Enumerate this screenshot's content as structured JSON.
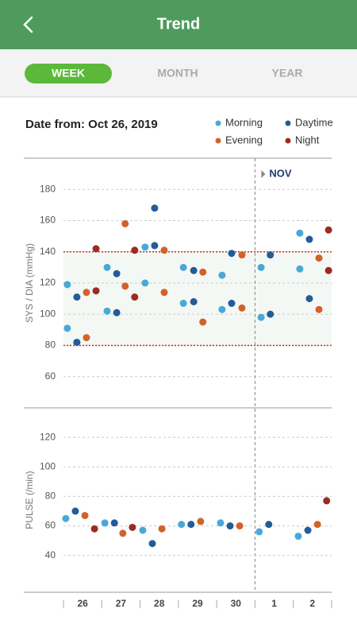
{
  "header": {
    "title": "Trend"
  },
  "tabs": [
    "WEEK",
    "MONTH",
    "YEAR"
  ],
  "active_tab": 0,
  "date_from": "Date from: Oct 26, 2019",
  "chart_data": [
    {
      "type": "scatter",
      "ylabel": "SYS / DIA  (mmHg)",
      "xlim": [
        0,
        7
      ],
      "ylim": [
        40,
        200
      ],
      "yticks": [
        60,
        80,
        100,
        120,
        140,
        160,
        180
      ],
      "grid": true,
      "target_range": [
        80,
        140
      ],
      "month_marker": {
        "label": "NOV",
        "x": 5
      },
      "series": [
        {
          "name": "Morning",
          "color": "#4aa8d8",
          "x": [
            0.1,
            1.14,
            2.13,
            3.13,
            4.14,
            5.16,
            6.17
          ],
          "sys": [
            119,
            130,
            143,
            130,
            125,
            130,
            152
          ],
          "dia": [
            91,
            102,
            120,
            107,
            103,
            98,
            129
          ]
        },
        {
          "name": "Daytime",
          "color": "#215d96",
          "x": [
            0.35,
            1.39,
            2.38,
            3.4,
            4.39,
            5.4,
            6.42
          ],
          "sys": [
            111,
            126,
            168,
            128,
            139,
            138,
            148
          ],
          "dia": [
            82,
            101,
            144,
            108,
            107,
            100,
            110
          ]
        },
        {
          "name": "Evening",
          "color": "#d2622a",
          "x": [
            0.6,
            1.61,
            2.63,
            3.64,
            4.66,
            6.67
          ],
          "sys": [
            114,
            158,
            141,
            127,
            138,
            136
          ],
          "dia": [
            85,
            118,
            114,
            95,
            104,
            103
          ]
        },
        {
          "name": "Night",
          "color": "#9c2b23",
          "x": [
            0.85,
            1.86,
            6.92
          ],
          "sys": [
            142,
            141,
            154
          ],
          "dia": [
            115,
            111,
            128
          ]
        }
      ]
    },
    {
      "type": "scatter",
      "ylabel": "PULSE  (/min)",
      "xlim": [
        0,
        7
      ],
      "ylim": [
        15,
        140
      ],
      "yticks": [
        40,
        60,
        80,
        100,
        120
      ],
      "grid": true,
      "xticks": [
        {
          "value": 0.5,
          "label": "26"
        },
        {
          "value": 1.5,
          "label": "27"
        },
        {
          "value": 2.5,
          "label": "28"
        },
        {
          "value": 3.5,
          "label": "29"
        },
        {
          "value": 4.5,
          "label": "30"
        },
        {
          "value": 5.5,
          "label": "1"
        },
        {
          "value": 6.5,
          "label": "2"
        }
      ],
      "series": [
        {
          "color": "#4aa8d8",
          "x": [
            0.06,
            1.08,
            2.07,
            3.08,
            4.1,
            5.11,
            6.13
          ],
          "values": [
            65,
            62,
            57,
            61,
            62,
            56,
            53
          ]
        },
        {
          "color": "#215d96",
          "x": [
            0.31,
            1.33,
            2.32,
            3.33,
            4.35,
            5.36,
            6.38
          ],
          "values": [
            70,
            62,
            48,
            61,
            60,
            61,
            57
          ]
        },
        {
          "color": "#d2622a",
          "x": [
            0.56,
            1.55,
            2.57,
            3.58,
            4.6,
            6.63
          ],
          "values": [
            67,
            55,
            58,
            63,
            60,
            61
          ]
        },
        {
          "color": "#9c2b23",
          "x": [
            0.81,
            1.8,
            6.87
          ],
          "values": [
            58,
            59,
            77
          ]
        }
      ]
    }
  ]
}
